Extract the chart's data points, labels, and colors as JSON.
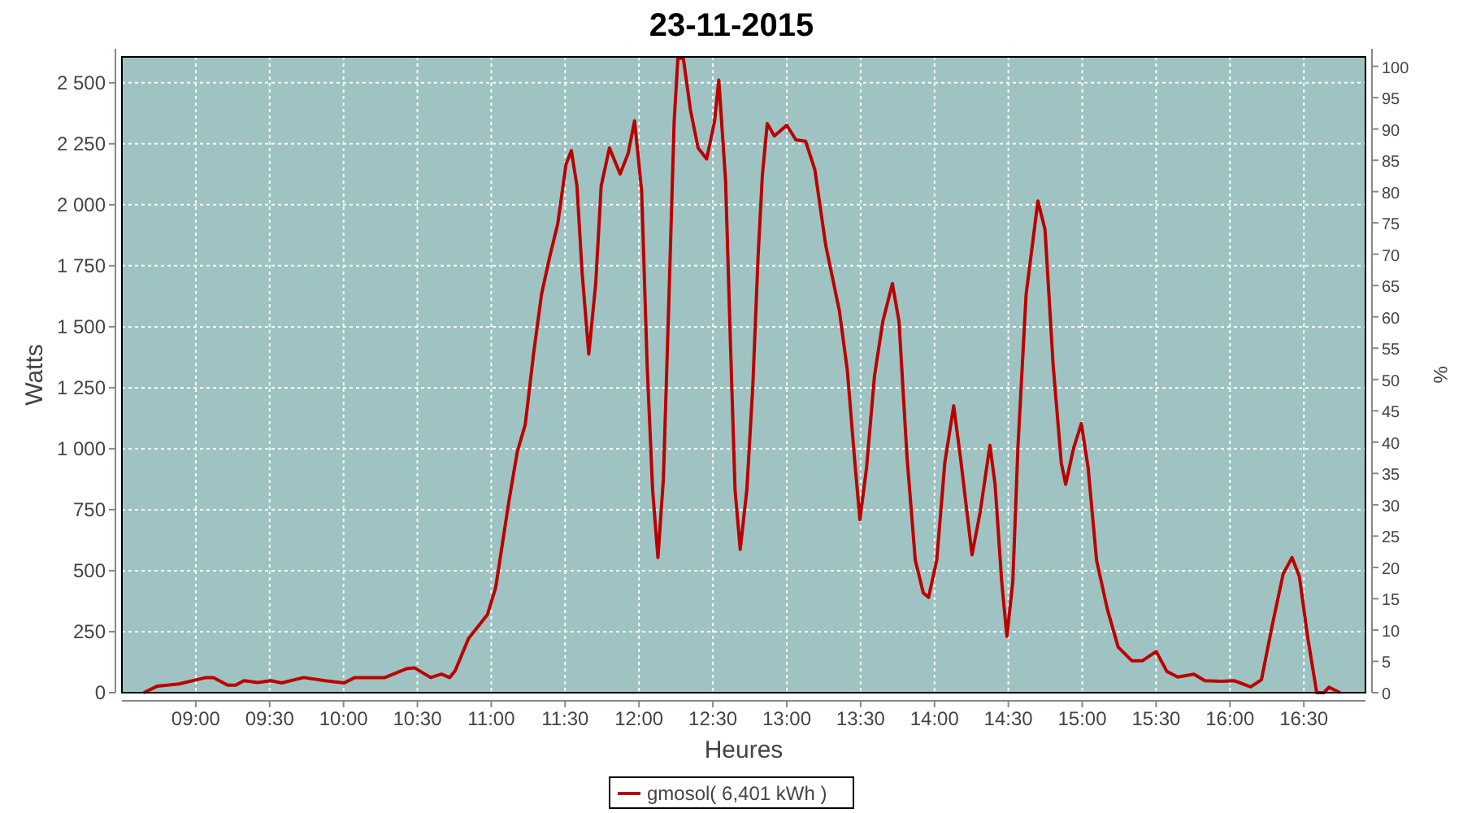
{
  "chart_data": {
    "type": "line",
    "title": "23-11-2015",
    "xlabel": "Heures",
    "ylabel": "Watts",
    "y2label": "%",
    "xlim": [
      8.5,
      16.917
    ],
    "xticks": [
      {
        "value": 9,
        "label": "09:00"
      },
      {
        "value": 9.5,
        "label": "09:30"
      },
      {
        "value": 10,
        "label": "10:00"
      },
      {
        "value": 10.5,
        "label": "10:30"
      },
      {
        "value": 11,
        "label": "11:00"
      },
      {
        "value": 11.5,
        "label": "11:30"
      },
      {
        "value": 12,
        "label": "12:00"
      },
      {
        "value": 12.5,
        "label": "12:30"
      },
      {
        "value": 13,
        "label": "13:00"
      },
      {
        "value": 13.5,
        "label": "13:30"
      },
      {
        "value": 14,
        "label": "14:00"
      },
      {
        "value": 14.5,
        "label": "14:30"
      },
      {
        "value": 15,
        "label": "15:00"
      },
      {
        "value": 15.5,
        "label": "15:30"
      },
      {
        "value": 16,
        "label": "16:00"
      },
      {
        "value": 16.5,
        "label": "16:30"
      }
    ],
    "ylim": [
      0,
      2606
    ],
    "yticks": [
      0,
      250,
      500,
      750,
      {
        "value": 1000,
        "label": "1 000"
      },
      {
        "value": 1250,
        "label": "1 250"
      },
      {
        "value": 1500,
        "label": "1 500"
      },
      {
        "value": 1750,
        "label": "1 750"
      },
      {
        "value": 2000,
        "label": "2 000"
      },
      {
        "value": 2250,
        "label": "2 250"
      },
      {
        "value": 2500,
        "label": "2 500"
      }
    ],
    "y2lim": [
      0,
      101.5
    ],
    "y2ticks": [
      0,
      5,
      10,
      15,
      20,
      25,
      30,
      35,
      40,
      45,
      50,
      55,
      60,
      65,
      70,
      75,
      80,
      85,
      90,
      95,
      100
    ],
    "grid": true,
    "legend": "bottom",
    "line_style": "solid",
    "marker": "none",
    "series": [
      {
        "name": "gmosol( 6,401 kWh )",
        "color": "#bb0000",
        "x": [
          8.648,
          8.74,
          8.886,
          9.07,
          9.12,
          9.216,
          9.27,
          9.326,
          9.418,
          9.51,
          9.58,
          9.73,
          9.875,
          10.004,
          10.077,
          10.28,
          10.425,
          10.48,
          10.59,
          10.663,
          10.718,
          10.755,
          10.846,
          10.974,
          11.03,
          11.12,
          11.176,
          11.23,
          11.286,
          11.34,
          11.396,
          11.45,
          11.506,
          11.542,
          11.58,
          11.615,
          11.66,
          11.707,
          11.744,
          11.8,
          11.872,
          11.927,
          11.97,
          12.018,
          12.055,
          12.092,
          12.128,
          12.165,
          12.2,
          12.238,
          12.263,
          12.3,
          12.348,
          12.4,
          12.458,
          12.512,
          12.54,
          12.586,
          12.62,
          12.65,
          12.685,
          12.73,
          12.77,
          12.806,
          12.835,
          12.868,
          12.916,
          13.0,
          13.062,
          13.128,
          13.19,
          13.264,
          13.356,
          13.41,
          13.458,
          13.495,
          13.54,
          13.594,
          13.65,
          13.715,
          13.76,
          13.814,
          13.87,
          13.924,
          13.96,
          14.015,
          14.07,
          14.13,
          14.18,
          14.254,
          14.31,
          14.375,
          14.41,
          14.455,
          14.49,
          14.53,
          14.565,
          14.62,
          14.7,
          14.748,
          14.803,
          14.858,
          14.888,
          14.94,
          14.994,
          15.04,
          15.097,
          15.17,
          15.243,
          15.335,
          15.408,
          15.5,
          15.573,
          15.646,
          15.756,
          15.83,
          15.94,
          16.03,
          16.14,
          16.213,
          16.286,
          16.36,
          16.42,
          16.47,
          16.525,
          16.587,
          16.635,
          16.67,
          16.745
        ],
        "values": [
          0,
          27,
          36,
          62,
          62,
          31,
          31,
          49,
          42,
          49,
          40,
          62,
          49,
          40,
          62,
          62,
          98,
          102,
          62,
          76,
          62,
          89,
          222,
          320,
          431,
          787,
          987,
          1099,
          1388,
          1632,
          1788,
          1922,
          2166,
          2222,
          2077,
          1721,
          1388,
          1677,
          2077,
          2233,
          2126,
          2211,
          2344,
          2055,
          1343,
          832,
          554,
          876,
          1566,
          2344,
          2600,
          2600,
          2389,
          2233,
          2188,
          2344,
          2511,
          2099,
          1410,
          832,
          587,
          832,
          1254,
          1788,
          2122,
          2333,
          2282,
          2326,
          2266,
          2260,
          2144,
          1833,
          1566,
          1321,
          965,
          709,
          921,
          1299,
          1521,
          1677,
          1521,
          965,
          543,
          409,
          391,
          543,
          943,
          1176,
          943,
          565,
          743,
          1014,
          854,
          454,
          231,
          454,
          1010,
          1632,
          2015,
          1899,
          1343,
          943,
          854,
          999,
          1103,
          921,
          543,
          342,
          187,
          131,
          131,
          169,
          87,
          64,
          76,
          49,
          47,
          49,
          24,
          53,
          276,
          487,
          554,
          476,
          231,
          0,
          0,
          22,
          0
        ]
      }
    ]
  }
}
